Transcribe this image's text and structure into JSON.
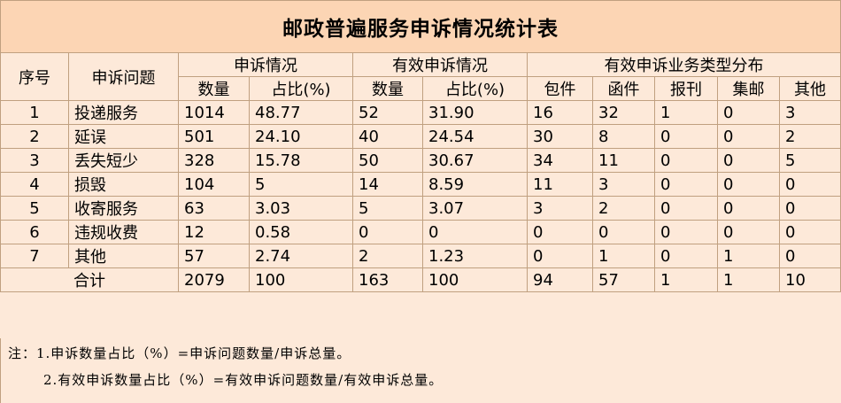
{
  "title": "邮政普遍服务申诉情况统计表",
  "headers": {
    "seq": "序号",
    "issue": "申诉问题",
    "complaint": "申诉情况",
    "valid": "有效申诉情况",
    "types": "有效申诉业务类型分布",
    "count": "数量",
    "ratio": "占比(%)",
    "valid_count": "数量",
    "valid_ratio": "占比(%)",
    "parcel": "包件",
    "letter": "函件",
    "newspaper": "报刊",
    "express": "集邮",
    "other": "其他"
  },
  "rows": [
    {
      "seq": "1",
      "issue": "投递服务",
      "count": "1014",
      "ratio": "48.77",
      "vcount": "52",
      "vratio": "31.90",
      "parcel": "16",
      "letter": "32",
      "newspaper": "1",
      "express": "0",
      "other": "3"
    },
    {
      "seq": "2",
      "issue": "延误",
      "count": "501",
      "ratio": "24.10",
      "vcount": "40",
      "vratio": "24.54",
      "parcel": "30",
      "letter": "8",
      "newspaper": "0",
      "express": "0",
      "other": "2"
    },
    {
      "seq": "3",
      "issue": "丢失短少",
      "count": "328",
      "ratio": "15.78",
      "vcount": "50",
      "vratio": "30.67",
      "parcel": "34",
      "letter": "11",
      "newspaper": "0",
      "express": "0",
      "other": "5"
    },
    {
      "seq": "4",
      "issue": "损毁",
      "count": "104",
      "ratio": "5",
      "vcount": "14",
      "vratio": "8.59",
      "parcel": "11",
      "letter": "3",
      "newspaper": "0",
      "express": "0",
      "other": "0"
    },
    {
      "seq": "5",
      "issue": "收寄服务",
      "count": "63",
      "ratio": "3.03",
      "vcount": "5",
      "vratio": "3.07",
      "parcel": "3",
      "letter": "2",
      "newspaper": "0",
      "express": "0",
      "other": "0"
    },
    {
      "seq": "6",
      "issue": "违规收费",
      "count": "12",
      "ratio": "0.58",
      "vcount": "0",
      "vratio": "0",
      "parcel": "0",
      "letter": "0",
      "newspaper": "0",
      "express": "0",
      "other": "0"
    },
    {
      "seq": "7",
      "issue": "其他",
      "count": "57",
      "ratio": "2.74",
      "vcount": "2",
      "vratio": "1.23",
      "parcel": "0",
      "letter": "1",
      "newspaper": "0",
      "express": "1",
      "other": "0"
    }
  ],
  "total": {
    "label": "合计",
    "count": "2079",
    "ratio": "100",
    "vcount": "163",
    "vratio": "100",
    "parcel": "94",
    "letter": "57",
    "newspaper": "1",
    "express": "1",
    "other": "10"
  },
  "notes": [
    "注：1.申诉数量占比（%）=申诉问题数量/申诉总量。",
    "2.有效申诉数量占比（%）=有效申诉问题数量/有效申诉总量。"
  ],
  "colors": {
    "title_bg": "#fcd5b4",
    "body_bg": "#fde9d9",
    "border": "#c0a080"
  }
}
